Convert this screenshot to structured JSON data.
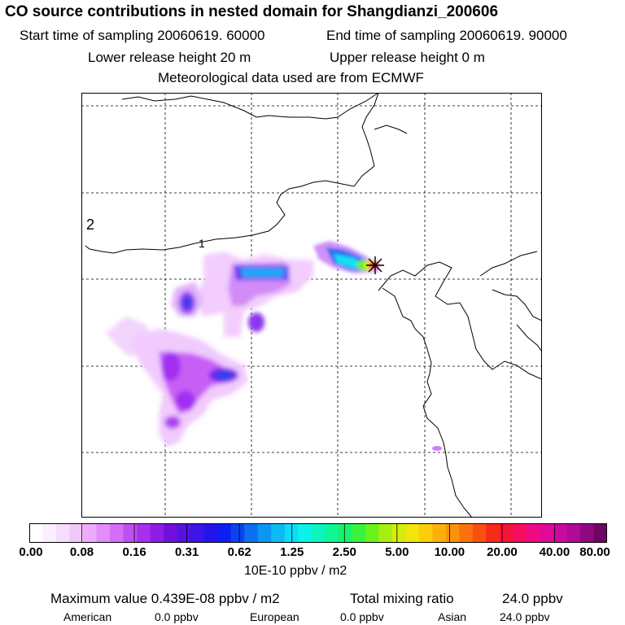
{
  "header": {
    "title": "CO  source contributions in nested domain for Shangdianzi_200606",
    "start_time": "Start time of sampling 20060619. 60000",
    "end_time": "End time of sampling 20060619. 90000",
    "lower_release": "Lower release height   20 m",
    "upper_release": "Upper release height    0 m",
    "met_data": "Meteorological data used are from ECMWF"
  },
  "map": {
    "contour_labels": [
      "2",
      "1"
    ],
    "source_marker": "star",
    "plumes": [
      {
        "name": "plume-main-source",
        "level": 20.0
      },
      {
        "name": "plume-central",
        "level": 0.62
      },
      {
        "name": "plume-west-column",
        "level": 0.31
      },
      {
        "name": "plume-southwest",
        "level": 0.31
      },
      {
        "name": "plume-southeast-spot",
        "level": 0.08
      }
    ]
  },
  "colorbar": {
    "tick_labels": [
      "0.00",
      "0.08",
      "0.16",
      "0.31",
      "0.62",
      "1.25",
      "2.50",
      "5.00",
      "10.00",
      "20.00",
      "40.00",
      "80.00"
    ],
    "unit": "10E-10 ppbv / m2",
    "colors": [
      "#ffffff",
      "#fbeefe",
      "#f7dcfd",
      "#f2c8fc",
      "#eeaafc",
      "#e38cfb",
      "#d46df8",
      "#c04ff3",
      "#a830ec",
      "#8f1ce6",
      "#7010dc",
      "#5512e0",
      "#3c14e6",
      "#2215ec",
      "#0d1ff0",
      "#0a44ef",
      "#0a6ff0",
      "#0b96f3",
      "#0cbaf5",
      "#0ddcf6",
      "#0bf2ea",
      "#0cf5c0",
      "#10f596",
      "#1af36a",
      "#38f23f",
      "#6cf21b",
      "#a5f00f",
      "#d4ed0c",
      "#f3e50b",
      "#fbcd0a",
      "#fcb00a",
      "#fc920b",
      "#fb720c",
      "#f9500f",
      "#f72a18",
      "#f5133a",
      "#f40d62",
      "#ee0b84",
      "#df0a98",
      "#c90aa0",
      "#af0a98",
      "#90087f",
      "#6f0563"
    ]
  },
  "stats": {
    "max_label": "Maximum value  0.439E-08 ppbv / m2",
    "total_label": "Total mixing ratio",
    "total_value": "24.0 ppbv",
    "american_label": "American",
    "american_value": "0.0 ppbv",
    "european_label": "European",
    "european_value": "0.0 ppbv",
    "asian_label": "Asian",
    "asian_value": "24.0 ppbv"
  }
}
